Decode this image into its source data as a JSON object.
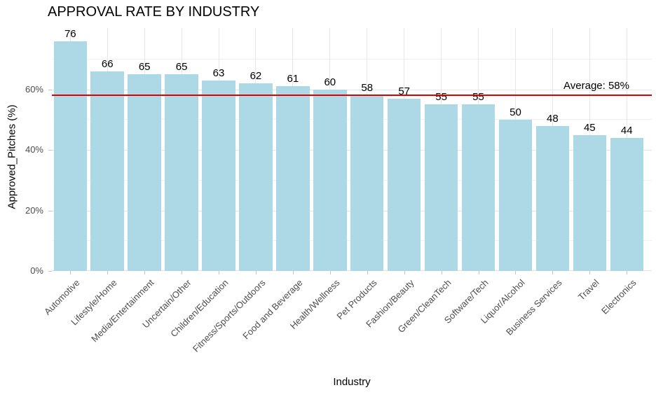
{
  "chart_data": {
    "type": "bar",
    "title": "APPROVAL RATE BY INDUSTRY",
    "xlabel": "Industry",
    "ylabel": "Approved_Pitches (%)",
    "categories": [
      "Automotive",
      "Lifestyle/Home",
      "Media/Entertainment",
      "Uncertain/Other",
      "Children/Education",
      "Fitness/Sports/Outdoors",
      "Food and Beverage",
      "Health/Wellness",
      "Pet Products",
      "Fashion/Beauty",
      "Green/CleanTech",
      "Software/Tech",
      "Liquor/Alcohol",
      "Business Services",
      "Travel",
      "Electronics"
    ],
    "values": [
      76,
      66,
      65,
      65,
      63,
      62,
      61,
      60,
      58,
      57,
      55,
      55,
      50,
      48,
      45,
      44
    ],
    "ylim": [
      0,
      80.3
    ],
    "y_ticks": [
      0,
      20,
      40,
      60
    ],
    "y_tick_labels": [
      "0%",
      "20%",
      "40%",
      "60%"
    ],
    "y_minor_ticks": [
      10,
      30,
      50,
      70
    ],
    "grid": true,
    "legend": "none",
    "average_line": {
      "value": 58,
      "label": "Average: 58%",
      "color": "#e00000"
    },
    "bar_color": "#add8e6"
  },
  "colors": {
    "bar_fill": "#add8e6",
    "average_line": "#e00000",
    "axis_text": "#4d4d4d",
    "title_text": "#000000"
  }
}
